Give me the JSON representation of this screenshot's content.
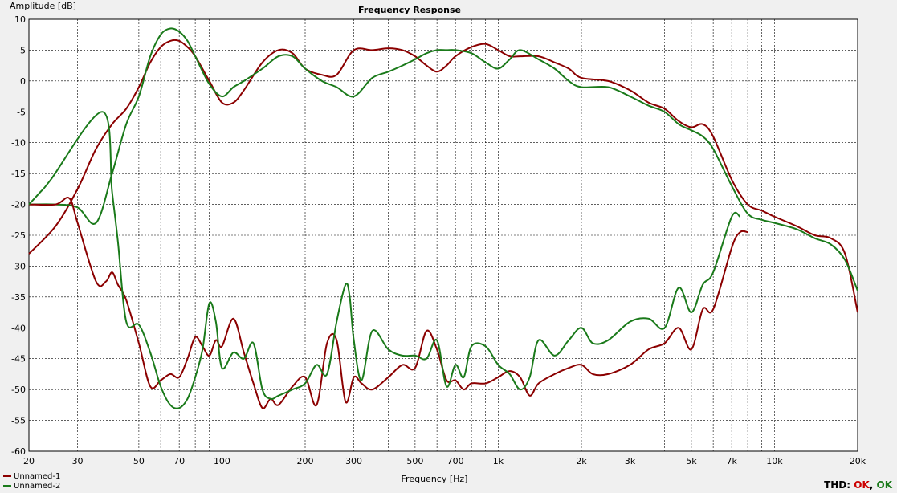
{
  "chart_data": {
    "type": "line",
    "title": "Frequency Response",
    "xlabel": "Frequency [Hz]",
    "ylabel": "Amplitude [dB]",
    "xscale": "log",
    "xlim": [
      20,
      20000
    ],
    "ylim": [
      -60,
      10
    ],
    "grid": true,
    "legend_position": "bottom-left",
    "x_ticks": [
      20,
      30,
      50,
      70,
      100,
      200,
      300,
      500,
      700,
      1000,
      2000,
      3000,
      5000,
      7000,
      10000,
      20000
    ],
    "x_tick_labels": [
      "20",
      "30",
      "50",
      "70",
      "100",
      "200",
      "300",
      "500",
      "700",
      "1k",
      "2k",
      "3k",
      "5k",
      "7k",
      "10k",
      "20k"
    ],
    "y_ticks": [
      10,
      5,
      0,
      -5,
      -10,
      -15,
      -20,
      -25,
      -30,
      -35,
      -40,
      -45,
      -50,
      -55,
      -60
    ],
    "y_tick_labels": [
      "10",
      "5",
      "0",
      "-5",
      "-10",
      "-15",
      "-20",
      "-25",
      "-30",
      "-35",
      "-40",
      "-45",
      "-50",
      "-55",
      "-60"
    ],
    "series": [
      {
        "name": "Unnamed-1",
        "color": "#8b0000",
        "kind": "response",
        "x": [
          20,
          25,
          30,
          35,
          40,
          45,
          50,
          55,
          60,
          65,
          70,
          75,
          80,
          90,
          100,
          110,
          120,
          140,
          160,
          180,
          200,
          230,
          260,
          300,
          350,
          400,
          450,
          500,
          550,
          600,
          650,
          700,
          800,
          900,
          1000,
          1100,
          1200,
          1400,
          1600,
          1800,
          2000,
          2500,
          3000,
          3500,
          4000,
          4500,
          5000,
          5500,
          6000,
          7000,
          8000,
          9000,
          10000,
          12000,
          14000,
          16000,
          18000,
          20000
        ],
        "y": [
          -28,
          -23.5,
          -17.5,
          -11,
          -7,
          -4.5,
          -1,
          3,
          5.5,
          6.5,
          6.5,
          5.5,
          4,
          0,
          -3.5,
          -3.5,
          -1.5,
          3,
          5,
          4.5,
          2,
          1,
          1,
          5,
          5,
          5.3,
          5,
          4,
          2.5,
          1.5,
          2.5,
          4,
          5.5,
          6,
          5,
          4,
          4,
          4,
          3,
          2,
          0.5,
          0,
          -1.5,
          -3.5,
          -4.5,
          -6.5,
          -7.5,
          -7,
          -9,
          -16,
          -20,
          -21,
          -22,
          -23.5,
          -25,
          -25.5,
          -28,
          -37.5
        ]
      },
      {
        "name": "Unnamed-2",
        "color": "#1a7a1a",
        "kind": "response",
        "x": [
          20,
          25,
          30,
          35,
          40,
          45,
          50,
          55,
          60,
          65,
          70,
          75,
          80,
          90,
          100,
          110,
          120,
          140,
          160,
          180,
          200,
          230,
          260,
          300,
          350,
          400,
          450,
          500,
          550,
          600,
          650,
          700,
          800,
          900,
          1000,
          1100,
          1200,
          1400,
          1600,
          1800,
          2000,
          2500,
          3000,
          3500,
          4000,
          4500,
          5000,
          5500,
          6000,
          7000,
          8000,
          9000,
          10000,
          12000,
          14000,
          16000,
          18000,
          20000
        ],
        "y": [
          -20,
          -20,
          -20.5,
          -23,
          -15,
          -7,
          -2.5,
          4,
          7.5,
          8.5,
          8,
          6.5,
          4,
          -0.5,
          -2.5,
          -1,
          0,
          2,
          4,
          4,
          2,
          0,
          -1,
          -2.5,
          0.5,
          1.5,
          2.5,
          3.5,
          4.5,
          5,
          5,
          5,
          4.5,
          3,
          2,
          3.5,
          5,
          3.5,
          2,
          0,
          -1,
          -1,
          -2.5,
          -4,
          -5,
          -7,
          -8,
          -9,
          -11,
          -17,
          -21.5,
          -22.5,
          -23,
          -24,
          -25.5,
          -26.5,
          -29,
          -34
        ]
      },
      {
        "name": "Unnamed-1",
        "color": "#8b0000",
        "kind": "thd",
        "x": [
          20,
          25,
          28,
          30,
          35,
          38,
          40,
          42,
          45,
          50,
          55,
          60,
          65,
          70,
          75,
          80,
          85,
          90,
          95,
          100,
          110,
          120,
          130,
          140,
          150,
          160,
          180,
          200,
          220,
          240,
          260,
          280,
          300,
          320,
          350,
          400,
          450,
          500,
          550,
          600,
          650,
          700,
          750,
          800,
          900,
          1000,
          1100,
          1200,
          1300,
          1400,
          1600,
          1800,
          2000,
          2200,
          2500,
          3000,
          3500,
          4000,
          4500,
          5000,
          5500,
          6000,
          7000,
          7500,
          8000
        ],
        "y": [
          -20,
          -20,
          -19,
          -23,
          -32.5,
          -32.5,
          -31,
          -33,
          -35.5,
          -42.5,
          -49.5,
          -48.5,
          -47.5,
          -48,
          -45,
          -41.5,
          -43,
          -44.5,
          -42,
          -43,
          -38.5,
          -44,
          -49,
          -53,
          -51.5,
          -52.5,
          -49.5,
          -48,
          -52.5,
          -42.5,
          -42,
          -52,
          -48,
          -49,
          -50,
          -48,
          -46,
          -46.5,
          -40.5,
          -43.5,
          -48.5,
          -48.5,
          -50,
          -49,
          -49,
          -48,
          -47,
          -48,
          -51,
          -49,
          -47.5,
          -46.5,
          -46,
          -47.5,
          -47.5,
          -46,
          -43.5,
          -42.5,
          -40,
          -43.5,
          -37,
          -37,
          -27,
          -24.5,
          -24.5
        ]
      },
      {
        "name": "Unnamed-2",
        "color": "#1a7a1a",
        "kind": "thd",
        "x": [
          20,
          22,
          24,
          37,
          40,
          42,
          45,
          50,
          55,
          60,
          65,
          70,
          75,
          80,
          85,
          90,
          95,
          100,
          110,
          120,
          130,
          140,
          150,
          160,
          180,
          200,
          220,
          240,
          260,
          280,
          290,
          300,
          320,
          350,
          400,
          450,
          500,
          550,
          600,
          650,
          700,
          750,
          800,
          900,
          1000,
          1100,
          1200,
          1300,
          1400,
          1600,
          1800,
          2000,
          2200,
          2500,
          3000,
          3500,
          4000,
          4500,
          5000,
          5500,
          6000,
          7000,
          7500
        ],
        "y": [
          -20,
          -18,
          -16,
          -5,
          -18,
          -26,
          -39,
          -39.5,
          -44,
          -49.5,
          -52.5,
          -53,
          -51.5,
          -48,
          -43.5,
          -36,
          -39,
          -46.5,
          -44,
          -45,
          -42.5,
          -50,
          -51.5,
          -51,
          -50,
          -49,
          -46,
          -47.5,
          -39,
          -33,
          -35,
          -42,
          -48.5,
          -40.5,
          -43.5,
          -44.5,
          -44.5,
          -45,
          -42,
          -49.5,
          -46,
          -48,
          -43,
          -43,
          -46,
          -47.5,
          -50,
          -48,
          -42,
          -44.5,
          -42,
          -40,
          -42.5,
          -42,
          -39,
          -38.5,
          -40,
          -33.5,
          -37.5,
          -33,
          -31,
          -22,
          -22
        ]
      }
    ]
  },
  "legend": {
    "items": [
      {
        "label": "Unnamed-1",
        "color": "#8b0000"
      },
      {
        "label": "Unnamed-2",
        "color": "#1a7a1a"
      }
    ]
  },
  "thd": {
    "label": "THD:",
    "status_1": "OK",
    "separator": ", ",
    "status_2": "OK",
    "color_1": "#cc0000",
    "color_2": "#1a7a1a"
  }
}
